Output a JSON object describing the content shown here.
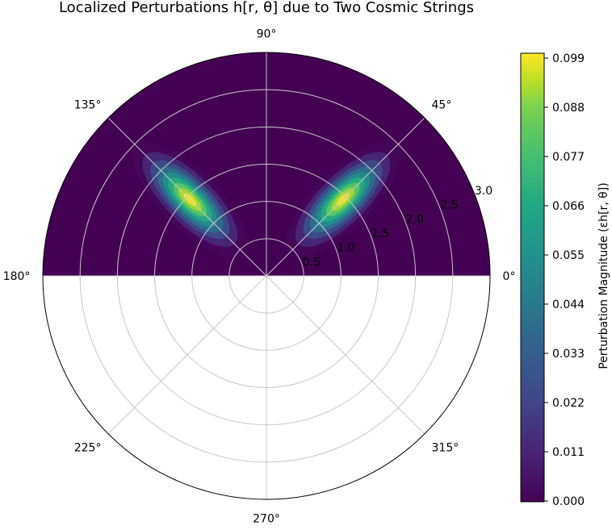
{
  "chart_data": {
    "type": "heatmap",
    "projection": "polar",
    "title": "Localized Perturbations h[r, θ] due to Two Cosmic Strings",
    "theta_ticks": [
      {
        "deg": 0,
        "label": "0°"
      },
      {
        "deg": 45,
        "label": "45°"
      },
      {
        "deg": 90,
        "label": "90°"
      },
      {
        "deg": 135,
        "label": "135°"
      },
      {
        "deg": 180,
        "label": "180°"
      },
      {
        "deg": 225,
        "label": "225°"
      },
      {
        "deg": 270,
        "label": "270°"
      },
      {
        "deg": 315,
        "label": "315°"
      }
    ],
    "r_ticks": [
      {
        "value": 0.5,
        "label": "0.5"
      },
      {
        "value": 1.0,
        "label": "1.0"
      },
      {
        "value": 1.5,
        "label": "1.5"
      },
      {
        "value": 2.0,
        "label": "2.0"
      },
      {
        "value": 2.5,
        "label": "2.5"
      },
      {
        "value": 3.0,
        "label": "3.0"
      }
    ],
    "rlim": [
      0,
      3.0
    ],
    "theta_data_range_deg": [
      0,
      180
    ],
    "grid": true,
    "colormap": "viridis",
    "colorbar": {
      "label": "Perturbation Magnitude (εh[r, θ])",
      "range": [
        0.0,
        0.099
      ],
      "ticks": [
        "0.000",
        "0.011",
        "0.022",
        "0.033",
        "0.044",
        "0.055",
        "0.066",
        "0.077",
        "0.088",
        "0.099"
      ]
    },
    "sources": [
      {
        "r": 1.45,
        "theta_deg": 45,
        "peak": 0.099
      },
      {
        "r": 1.45,
        "theta_deg": 135,
        "peak": 0.099
      }
    ]
  }
}
